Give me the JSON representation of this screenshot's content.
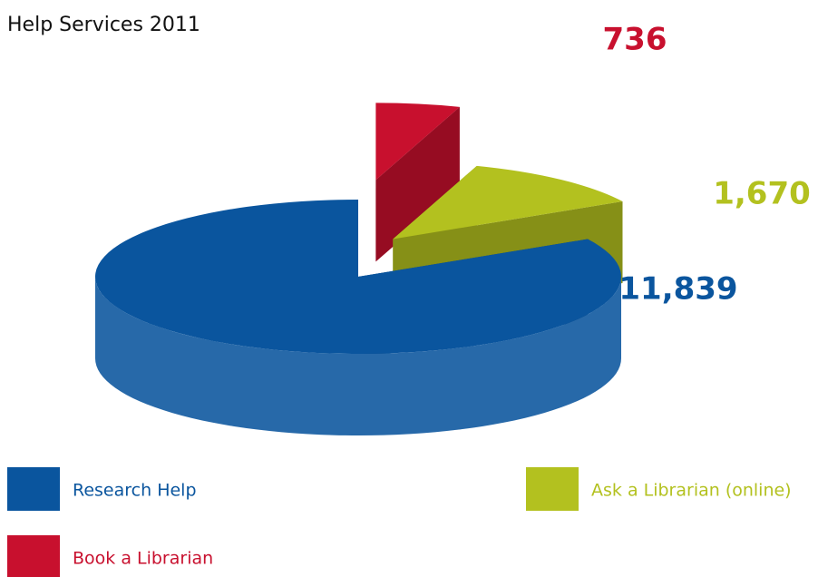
{
  "chart_data": {
    "type": "pie3d",
    "title": "Help Services 2011",
    "categories": [
      "Research Help",
      "Ask a Librarian (online)",
      "Book a Librarian"
    ],
    "values": [
      11839,
      1670,
      736
    ],
    "value_labels": [
      "11,839",
      "1,670",
      "736"
    ],
    "colors": [
      "#0a559e",
      "#b3c11f",
      "#c8102e"
    ]
  }
}
